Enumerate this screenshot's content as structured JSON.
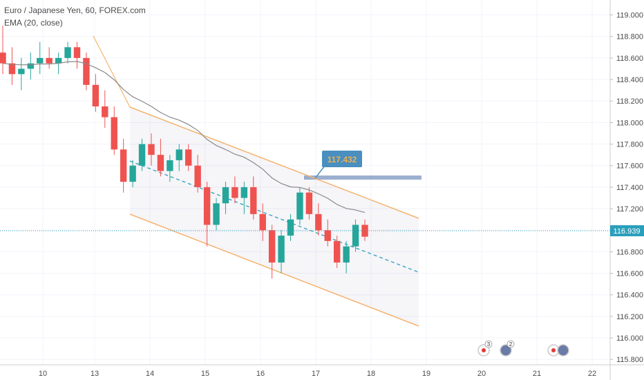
{
  "header": {
    "symbol_title": "Euro / Japanese Yen, 60, FOREX.com",
    "indicator": "EMA (20, close)"
  },
  "chart_data": {
    "type": "candlestick",
    "ylim": [
      115.75,
      119.1
    ],
    "y_ticks": [
      "119.000",
      "118.800",
      "118.600",
      "118.400",
      "118.200",
      "118.000",
      "117.800",
      "117.600",
      "117.400",
      "117.200",
      "117.000",
      "116.800",
      "116.600",
      "116.400",
      "116.200",
      "116.000",
      "115.800"
    ],
    "x_ticks": [
      "10",
      "13",
      "14",
      "15",
      "16",
      "17",
      "18",
      "19",
      "20",
      "21",
      "22"
    ],
    "last_price": "116.939",
    "callout_price": "117.432",
    "ohlc": [
      [
        118.65,
        118.9,
        118.45,
        118.55
      ],
      [
        118.55,
        118.7,
        118.35,
        118.45
      ],
      [
        118.45,
        118.6,
        118.3,
        118.5
      ],
      [
        118.5,
        118.65,
        118.4,
        118.55
      ],
      [
        118.55,
        118.75,
        118.45,
        118.6
      ],
      [
        118.6,
        118.7,
        118.5,
        118.55
      ],
      [
        118.55,
        118.65,
        118.45,
        118.6
      ],
      [
        118.6,
        118.75,
        118.55,
        118.7
      ],
      [
        118.7,
        118.75,
        118.5,
        118.6
      ],
      [
        118.6,
        118.65,
        118.3,
        118.35
      ],
      [
        118.35,
        118.45,
        118.1,
        118.15
      ],
      [
        118.15,
        118.3,
        117.95,
        118.05
      ],
      [
        118.05,
        118.15,
        117.7,
        117.75
      ],
      [
        117.75,
        117.85,
        117.35,
        117.45
      ],
      [
        117.45,
        117.65,
        117.4,
        117.6
      ],
      [
        117.6,
        117.85,
        117.55,
        117.8
      ],
      [
        117.8,
        117.9,
        117.6,
        117.7
      ],
      [
        117.7,
        117.85,
        117.5,
        117.55
      ],
      [
        117.55,
        117.7,
        117.45,
        117.65
      ],
      [
        117.65,
        117.8,
        117.55,
        117.75
      ],
      [
        117.75,
        117.8,
        117.55,
        117.6
      ],
      [
        117.6,
        117.7,
        117.35,
        117.4
      ],
      [
        117.4,
        117.45,
        116.85,
        117.05
      ],
      [
        117.05,
        117.3,
        117.0,
        117.25
      ],
      [
        117.25,
        117.45,
        117.15,
        117.4
      ],
      [
        117.4,
        117.5,
        117.25,
        117.3
      ],
      [
        117.3,
        117.45,
        117.15,
        117.4
      ],
      [
        117.4,
        117.5,
        117.1,
        117.15
      ],
      [
        117.15,
        117.25,
        116.9,
        117.0
      ],
      [
        117.0,
        117.05,
        116.55,
        116.7
      ],
      [
        116.7,
        117.0,
        116.6,
        116.95
      ],
      [
        116.95,
        117.15,
        116.9,
        117.1
      ],
      [
        117.1,
        117.4,
        117.05,
        117.35
      ],
      [
        117.35,
        117.4,
        117.1,
        117.15
      ],
      [
        117.15,
        117.25,
        116.95,
        117.0
      ],
      [
        117.0,
        117.1,
        116.85,
        116.9
      ],
      [
        116.9,
        116.95,
        116.65,
        116.7
      ],
      [
        116.7,
        116.9,
        116.6,
        116.85
      ],
      [
        116.85,
        117.1,
        116.8,
        117.05
      ],
      [
        117.05,
        117.1,
        116.9,
        116.94
      ]
    ]
  },
  "drawings": {
    "channel_color": "#f5b46e",
    "midline_color": "#2a9fbc",
    "ema_color": "#888888",
    "up_color": "#26a69a",
    "down_color": "#ef5350",
    "callout_color": "#4a8fbf"
  }
}
